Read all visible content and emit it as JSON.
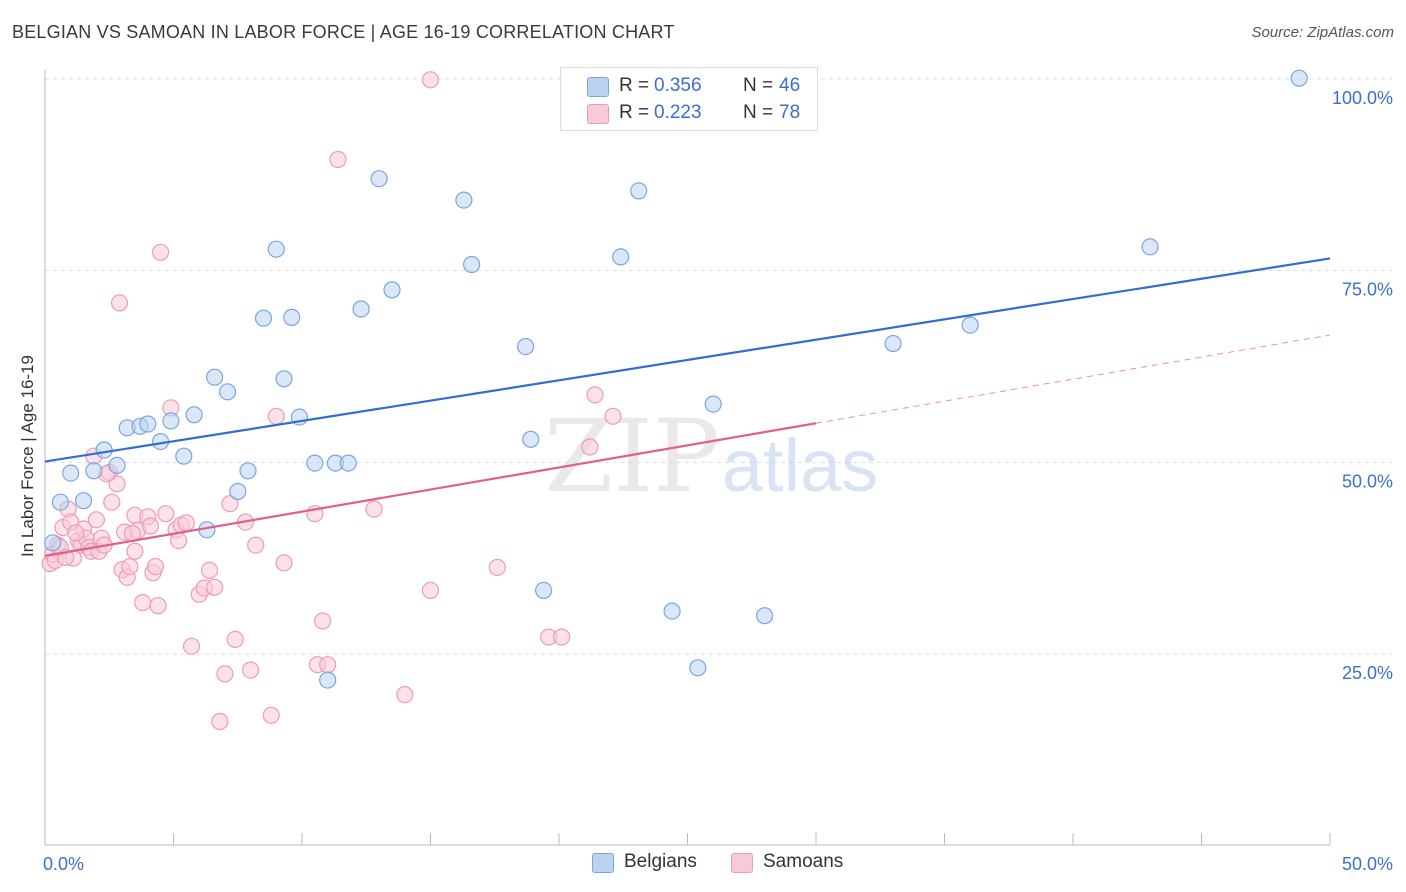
{
  "chart_data": {
    "type": "scatter",
    "title": "BELGIAN VS SAMOAN IN LABOR FORCE | AGE 16-19 CORRELATION CHART",
    "source": "Source: ZipAtlas.com",
    "xlabel": "",
    "ylabel": "In Labor Force | Age 16-19",
    "xlim": [
      0,
      50
    ],
    "ylim": [
      0,
      105
    ],
    "x_tick_labels": {
      "min": "0.0%",
      "max": "50.0%"
    },
    "y_ticks": [
      {
        "value": 100,
        "label": "100.0%"
      },
      {
        "value": 75,
        "label": "75.0%"
      },
      {
        "value": 50,
        "label": "50.0%"
      },
      {
        "value": 25,
        "label": "25.0%"
      }
    ],
    "watermark": {
      "zip": "ZIP",
      "atlas": "atlas"
    },
    "legend": {
      "r_label": "R =",
      "n_label": "N =",
      "entries": [
        {
          "name": "Belgians",
          "r": "0.356",
          "n": "46"
        },
        {
          "name": "Samoans",
          "r": "0.223",
          "n": "78"
        }
      ]
    },
    "series": [
      {
        "name": "Belgians",
        "color": "#7aa6e0",
        "fill": "#bcd3f0",
        "trend_color": "#2f6fd0",
        "trend": {
          "x0": 0,
          "y0": 50.1,
          "x1": 50,
          "y1": 76.6
        },
        "points": [
          [
            0.3,
            39.5
          ],
          [
            0.6,
            44.8
          ],
          [
            1.0,
            48.6
          ],
          [
            1.5,
            45.0
          ],
          [
            1.9,
            48.9
          ],
          [
            2.3,
            51.6
          ],
          [
            2.8,
            49.6
          ],
          [
            3.2,
            54.5
          ],
          [
            3.7,
            54.7
          ],
          [
            4.0,
            55.0
          ],
          [
            4.5,
            52.7
          ],
          [
            4.9,
            55.4
          ],
          [
            5.4,
            50.8
          ],
          [
            5.8,
            56.2
          ],
          [
            6.3,
            41.2
          ],
          [
            6.6,
            61.1
          ],
          [
            7.1,
            59.2
          ],
          [
            7.5,
            46.2
          ],
          [
            7.9,
            48.9
          ],
          [
            8.5,
            68.8
          ],
          [
            9.0,
            77.8
          ],
          [
            9.3,
            60.9
          ],
          [
            9.6,
            68.9
          ],
          [
            9.9,
            55.9
          ],
          [
            10.5,
            49.9
          ],
          [
            11.0,
            21.6
          ],
          [
            11.3,
            49.9
          ],
          [
            11.8,
            49.9
          ],
          [
            12.3,
            70.0
          ],
          [
            13.0,
            87.0
          ],
          [
            13.5,
            72.5
          ],
          [
            16.3,
            84.2
          ],
          [
            16.6,
            75.8
          ],
          [
            18.7,
            65.1
          ],
          [
            18.9,
            53.0
          ],
          [
            19.4,
            33.3
          ],
          [
            22.4,
            76.8
          ],
          [
            23.1,
            85.4
          ],
          [
            24.4,
            30.6
          ],
          [
            25.4,
            23.2
          ],
          [
            26.0,
            57.6
          ],
          [
            28.0,
            30.0
          ],
          [
            33.0,
            65.5
          ],
          [
            36.0,
            67.9
          ],
          [
            43.0,
            78.1
          ],
          [
            48.8,
            100.1
          ]
        ]
      },
      {
        "name": "Samoans",
        "color": "#f09ab5",
        "fill": "#f8cad9",
        "trend_color": "#e0608a",
        "trend": {
          "x0": 0,
          "y0": 37.8,
          "x1": 30,
          "y1": 55.1
        },
        "trend_dashed": {
          "x0": 30,
          "y0": 55.1,
          "x1": 50,
          "y1": 66.6
        },
        "points": [
          [
            0.2,
            36.8
          ],
          [
            0.3,
            38.0
          ],
          [
            0.4,
            37.2
          ],
          [
            0.5,
            39.2
          ],
          [
            0.7,
            41.5
          ],
          [
            0.9,
            43.9
          ],
          [
            1.0,
            42.2
          ],
          [
            1.1,
            37.5
          ],
          [
            1.3,
            39.8
          ],
          [
            1.4,
            39.2
          ],
          [
            1.5,
            41.3
          ],
          [
            1.6,
            40.1
          ],
          [
            1.7,
            38.9
          ],
          [
            1.8,
            38.4
          ],
          [
            1.9,
            50.8
          ],
          [
            2.0,
            42.5
          ],
          [
            2.1,
            38.4
          ],
          [
            2.2,
            40.1
          ],
          [
            2.3,
            39.2
          ],
          [
            2.5,
            48.7
          ],
          [
            2.6,
            44.8
          ],
          [
            2.8,
            47.2
          ],
          [
            2.9,
            70.8
          ],
          [
            3.0,
            36.0
          ],
          [
            3.1,
            40.9
          ],
          [
            3.2,
            35.0
          ],
          [
            3.3,
            36.4
          ],
          [
            3.5,
            38.4
          ],
          [
            3.5,
            43.1
          ],
          [
            3.6,
            41.1
          ],
          [
            3.8,
            31.7
          ],
          [
            4.0,
            42.9
          ],
          [
            4.1,
            41.7
          ],
          [
            4.2,
            35.6
          ],
          [
            4.3,
            36.4
          ],
          [
            4.4,
            31.3
          ],
          [
            4.5,
            77.4
          ],
          [
            4.7,
            43.3
          ],
          [
            4.9,
            57.1
          ],
          [
            5.1,
            41.2
          ],
          [
            5.2,
            39.8
          ],
          [
            5.3,
            41.8
          ],
          [
            5.5,
            42.1
          ],
          [
            5.7,
            26.0
          ],
          [
            6.0,
            32.8
          ],
          [
            6.2,
            33.6
          ],
          [
            6.4,
            35.9
          ],
          [
            6.6,
            33.7
          ],
          [
            6.8,
            16.2
          ],
          [
            7.0,
            22.4
          ],
          [
            7.2,
            44.6
          ],
          [
            7.4,
            26.9
          ],
          [
            7.8,
            42.2
          ],
          [
            8.0,
            22.9
          ],
          [
            8.2,
            39.2
          ],
          [
            8.8,
            17.0
          ],
          [
            9.0,
            56.0
          ],
          [
            9.3,
            36.9
          ],
          [
            10.5,
            43.3
          ],
          [
            10.6,
            23.6
          ],
          [
            10.8,
            29.3
          ],
          [
            11.0,
            23.6
          ],
          [
            11.4,
            89.5
          ],
          [
            12.8,
            43.9
          ],
          [
            14.0,
            19.7
          ],
          [
            15.0,
            99.9
          ],
          [
            15.0,
            33.3
          ],
          [
            17.6,
            36.3
          ],
          [
            19.6,
            27.2
          ],
          [
            20.1,
            27.2
          ],
          [
            21.2,
            52.0
          ],
          [
            21.4,
            58.8
          ],
          [
            22.1,
            56.0
          ],
          [
            0.6,
            38.9
          ],
          [
            0.8,
            37.6
          ],
          [
            1.2,
            40.8
          ],
          [
            2.4,
            48.5
          ],
          [
            3.4,
            40.7
          ]
        ]
      }
    ]
  }
}
